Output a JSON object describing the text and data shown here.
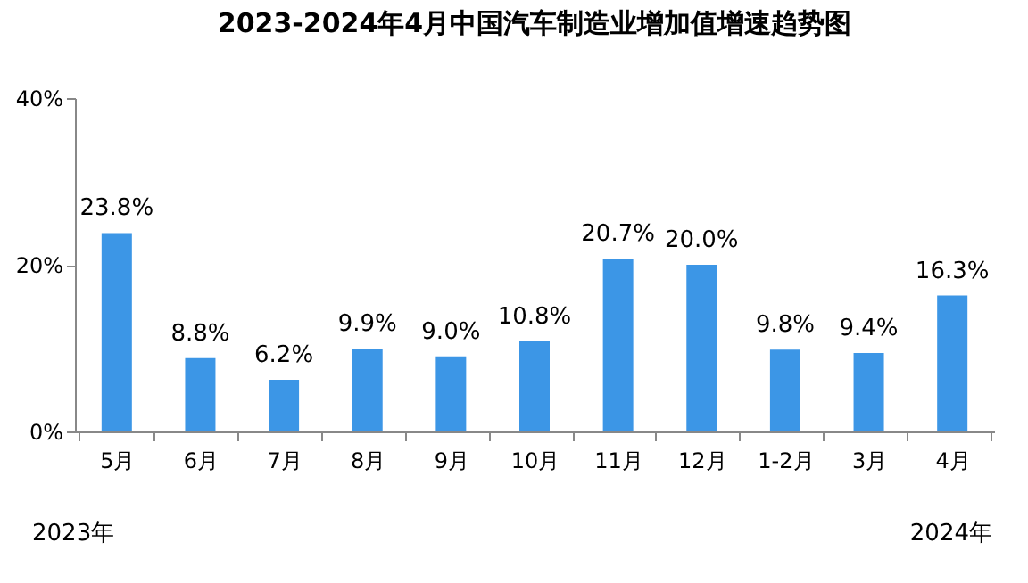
{
  "chart_data": {
    "type": "bar",
    "title": "2023-2024年4月中国汽车制造业增加值增速趋势图",
    "categories": [
      "5月",
      "6月",
      "7月",
      "8月",
      "9月",
      "10月",
      "11月",
      "12月",
      "1-2月",
      "3月",
      "4月"
    ],
    "values": [
      23.8,
      8.8,
      6.2,
      9.9,
      9.0,
      10.8,
      20.7,
      20.0,
      9.8,
      9.4,
      16.3
    ],
    "value_labels": [
      "23.8%",
      "8.8%",
      "6.2%",
      "9.9%",
      "9.0%",
      "10.8%",
      "20.7%",
      "20.0%",
      "9.8%",
      "9.4%",
      "16.3%"
    ],
    "color": "#3c96e6",
    "ylim": [
      0,
      40
    ],
    "yticks": [
      {
        "value": 0,
        "label": "0%"
      },
      {
        "value": 20,
        "label": "20%"
      },
      {
        "value": 40,
        "label": "40%"
      }
    ],
    "annotations": [
      "2023年",
      "2024年"
    ]
  }
}
